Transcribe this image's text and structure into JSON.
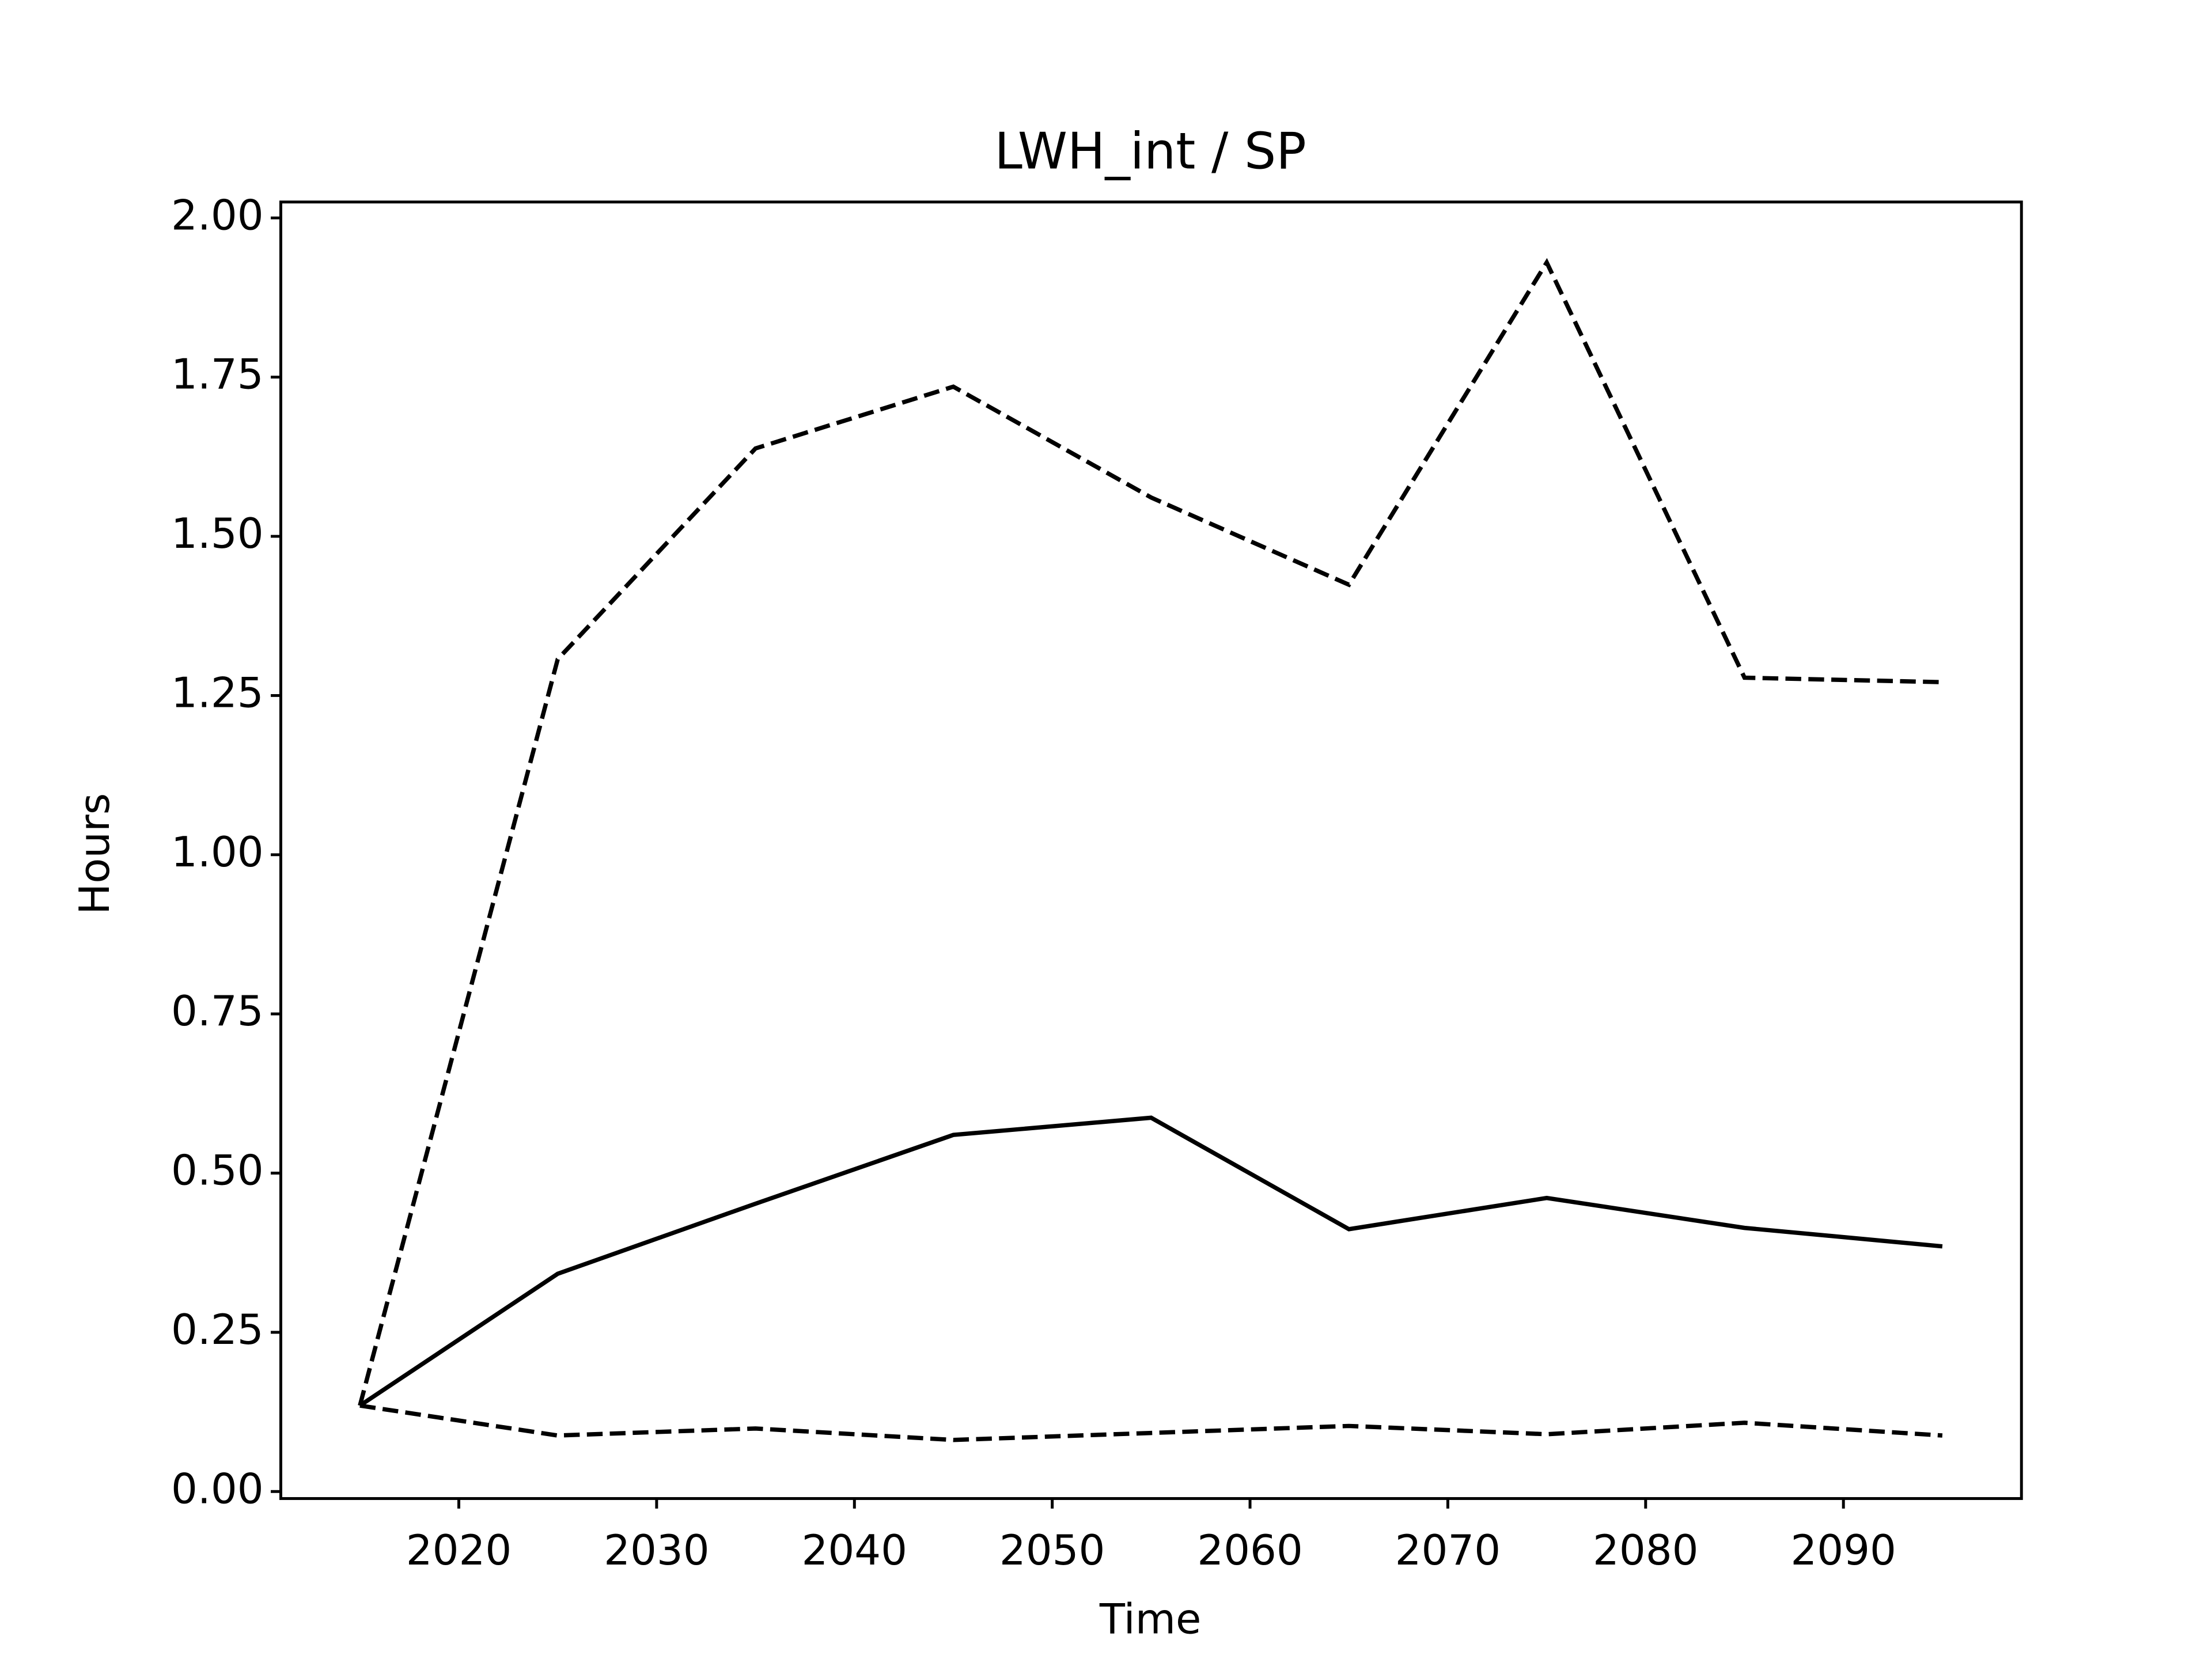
{
  "chart_data": {
    "type": "line",
    "title": "LWH_int / SP",
    "xlabel": "Time",
    "ylabel": "Hours",
    "x": [
      2015,
      2025,
      2035,
      2045,
      2055,
      2065,
      2075,
      2085,
      2095
    ],
    "series": [
      {
        "color": "#000000",
        "linestyle": "solid",
        "values": [
          0.135,
          0.342,
          0.452,
          0.56,
          0.587,
          0.412,
          0.461,
          0.414,
          0.385
        ]
      },
      {
        "color": "#000000",
        "linestyle": "dashed",
        "values": [
          0.135,
          1.307,
          1.638,
          1.735,
          1.561,
          1.424,
          1.93,
          1.278,
          1.271
        ]
      },
      {
        "color": "#000000",
        "linestyle": "dashed",
        "values": [
          0.135,
          0.088,
          0.099,
          0.081,
          0.092,
          0.103,
          0.09,
          0.108,
          0.088
        ]
      }
    ],
    "xlim": [
      2011,
      2099
    ],
    "xticks": [
      2020,
      2030,
      2040,
      2050,
      2060,
      2070,
      2080,
      2090
    ],
    "ylim": [
      -0.011,
      2.025
    ],
    "yticks": [
      {
        "value": 0,
        "label": "0.00"
      },
      {
        "value": 0.25,
        "label": "0.25"
      },
      {
        "value": 0.5,
        "label": "0.50"
      },
      {
        "value": 0.75,
        "label": "0.75"
      },
      {
        "value": 1,
        "label": "1.00"
      },
      {
        "value": 1.25,
        "label": "1.25"
      },
      {
        "value": 1.5,
        "label": "1.50"
      },
      {
        "value": 1.75,
        "label": "1.75"
      },
      {
        "value": 2,
        "label": "2.00"
      }
    ],
    "grid": false
  }
}
